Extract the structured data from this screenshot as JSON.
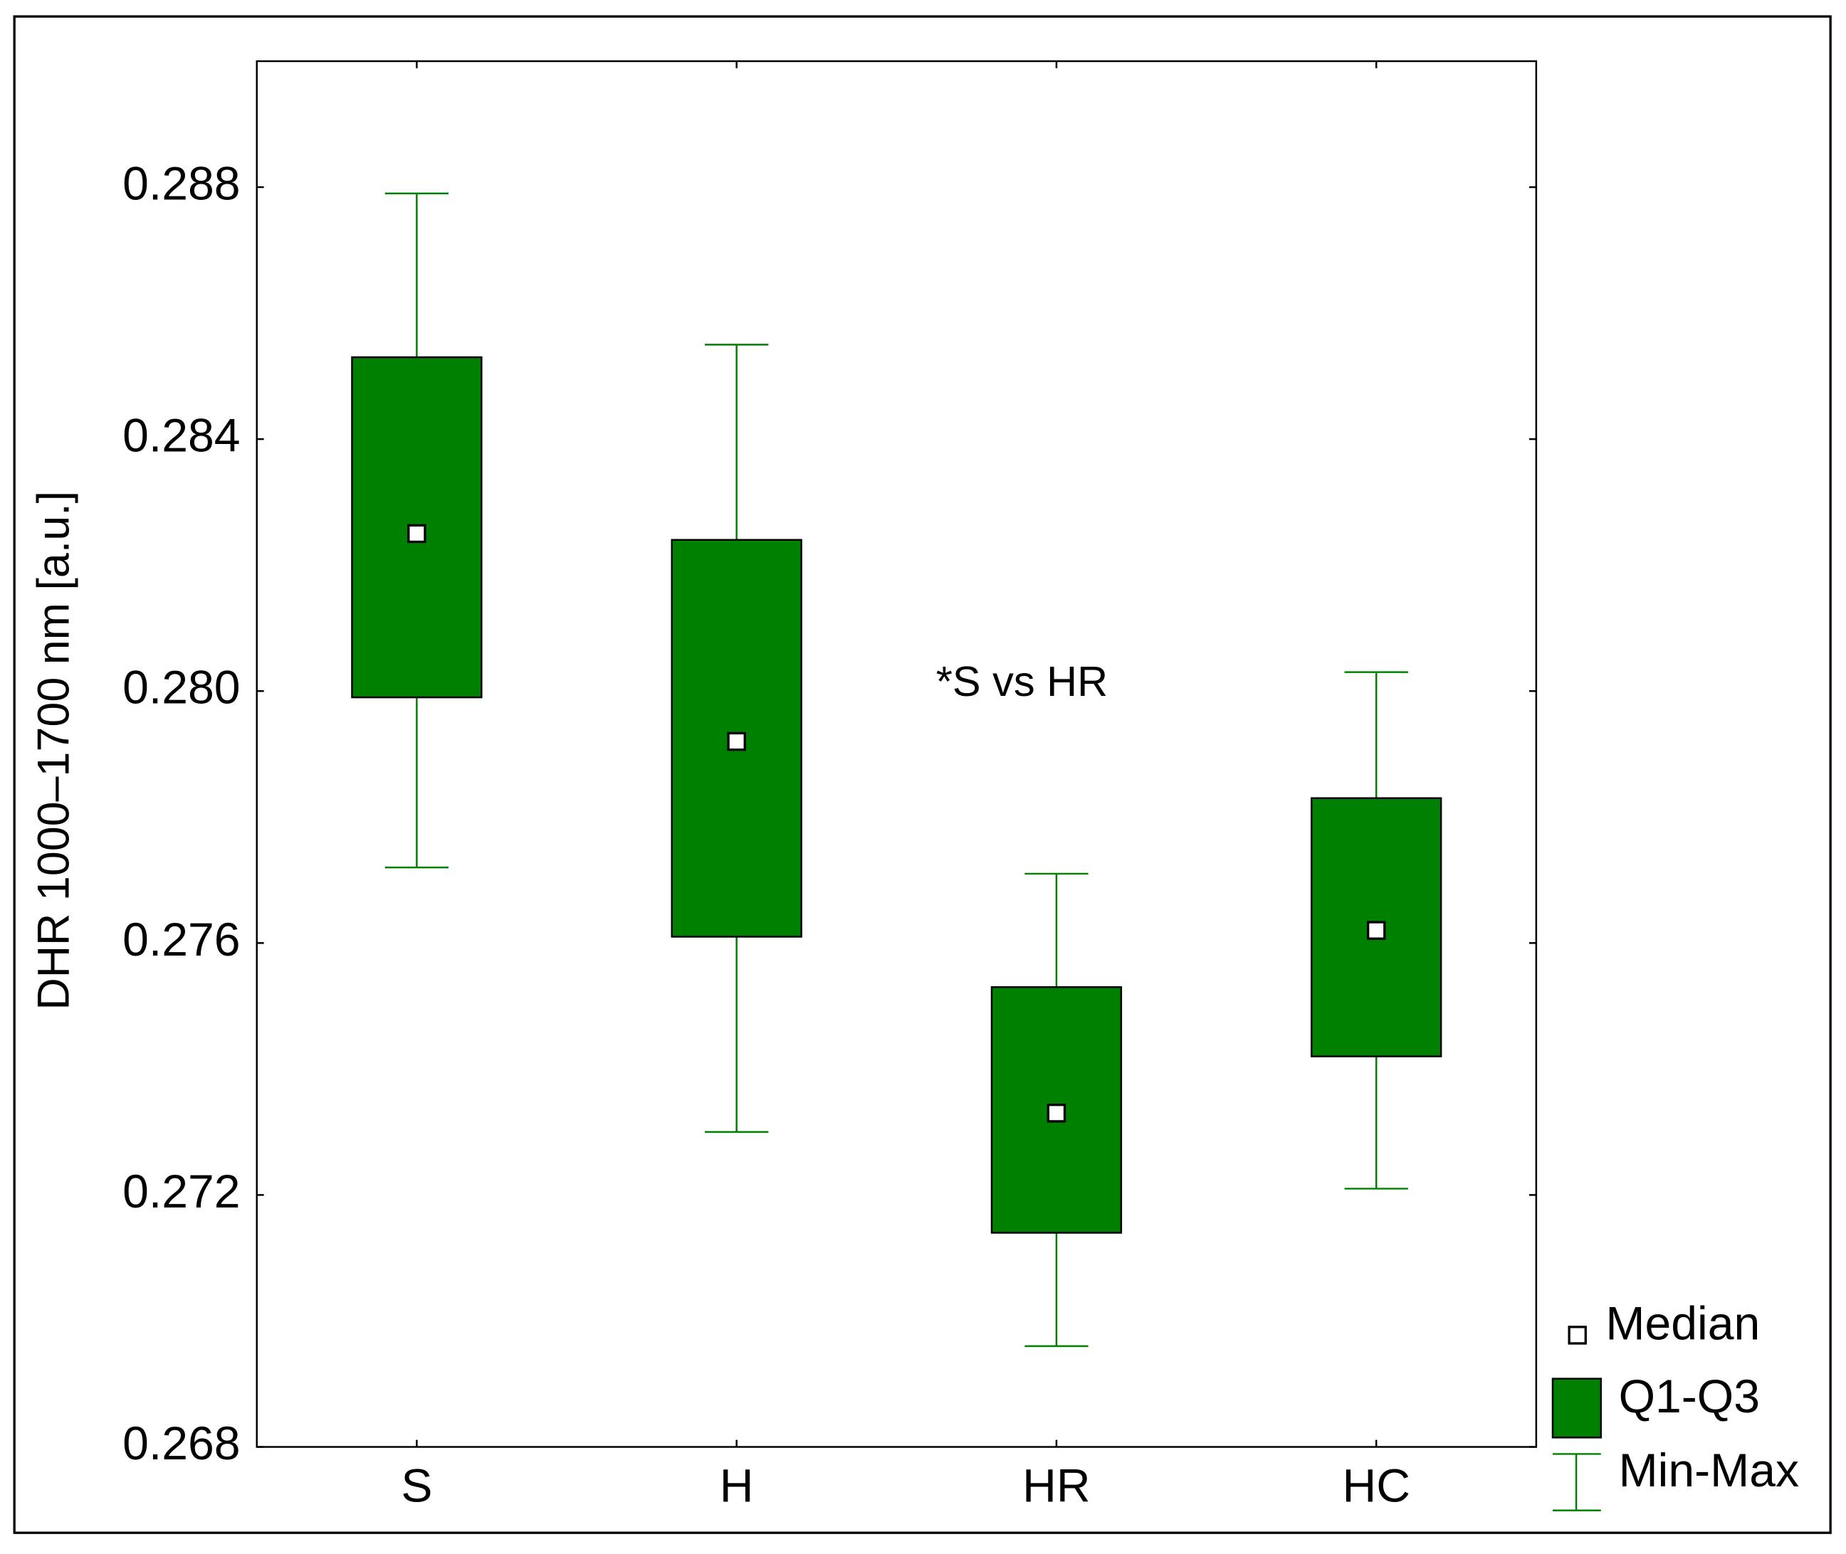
{
  "chart_data": {
    "type": "box",
    "ylabel": "DHR 1000–1700 nm [a.u.]",
    "annotation": "*S vs HR",
    "categories": [
      "S",
      "H",
      "HR",
      "HC"
    ],
    "min": [
      0.2772,
      0.273,
      0.2696,
      0.2721
    ],
    "q1": [
      0.2799,
      0.2761,
      0.2714,
      0.2742
    ],
    "median": [
      0.2825,
      0.2792,
      0.2733,
      0.2762
    ],
    "q3": [
      0.2853,
      0.2824,
      0.2753,
      0.2783
    ],
    "max": [
      0.2879,
      0.2855,
      0.2771,
      0.2803
    ],
    "color": "#008000",
    "legend": [
      "Median",
      "Q1-Q3",
      "Min-Max"
    ],
    "ylim": [
      0.268,
      0.29
    ],
    "yticks": [
      0.268,
      0.272,
      0.276,
      {
        "value": 0.28,
        "label": "0.280"
      },
      0.284,
      0.288
    ]
  }
}
